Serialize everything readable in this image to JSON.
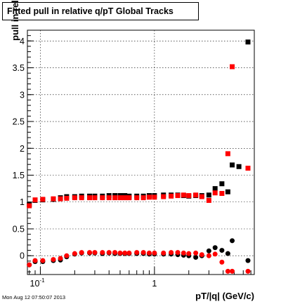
{
  "title": "Fitted pull in relative q/pT  Global Tracks",
  "timestamp": "Mon Aug 12 07:50:07 2013",
  "chart_data": {
    "type": "scatter",
    "xlabel": "pT/|q| (GeV/c)",
    "ylabel": "pull in relative q/pT",
    "xscale": "log",
    "xlim": [
      0.077,
      7.5
    ],
    "ylim": [
      -0.35,
      4.2
    ],
    "grid": true,
    "x_tick_labels": [
      "10",
      "-1",
      "1"
    ],
    "y_ticks": [
      0,
      0.5,
      1,
      1.5,
      2,
      2.5,
      3,
      3.5,
      4
    ],
    "colors": {
      "black_series": "#000000",
      "red_series": "#ff0000"
    },
    "series": [
      {
        "marker": "square",
        "color": "#000000",
        "points": [
          [
            0.08,
            0.95
          ],
          [
            0.09,
            1.03
          ],
          [
            0.105,
            1.04
          ],
          [
            0.13,
            1.05
          ],
          [
            0.15,
            1.08
          ],
          [
            0.17,
            1.1
          ],
          [
            0.2,
            1.1
          ],
          [
            0.23,
            1.11
          ],
          [
            0.27,
            1.11
          ],
          [
            0.3,
            1.11
          ],
          [
            0.35,
            1.11
          ],
          [
            0.4,
            1.12
          ],
          [
            0.45,
            1.12
          ],
          [
            0.5,
            1.12
          ],
          [
            0.55,
            1.12
          ],
          [
            0.6,
            1.11
          ],
          [
            0.7,
            1.11
          ],
          [
            0.8,
            1.11
          ],
          [
            0.9,
            1.12
          ],
          [
            1.0,
            1.12
          ],
          [
            1.2,
            1.13
          ],
          [
            1.4,
            1.13
          ],
          [
            1.6,
            1.13
          ],
          [
            1.8,
            1.12
          ],
          [
            2.0,
            1.11
          ],
          [
            2.3,
            1.12
          ],
          [
            2.6,
            1.12
          ],
          [
            3.0,
            1.13
          ],
          [
            3.4,
            1.25
          ],
          [
            3.9,
            1.34
          ],
          [
            4.4,
            1.19
          ],
          [
            4.8,
            1.69
          ],
          [
            5.5,
            1.66
          ],
          [
            6.6,
            3.98
          ]
        ]
      },
      {
        "marker": "circle",
        "color": "#000000",
        "points": [
          [
            0.08,
            -0.17
          ],
          [
            0.09,
            -0.11
          ],
          [
            0.105,
            -0.11
          ],
          [
            0.13,
            -0.09
          ],
          [
            0.15,
            -0.08
          ],
          [
            0.17,
            -0.02
          ],
          [
            0.2,
            0.03
          ],
          [
            0.23,
            0.05
          ],
          [
            0.27,
            0.05
          ],
          [
            0.3,
            0.05
          ],
          [
            0.35,
            0.04
          ],
          [
            0.4,
            0.05
          ],
          [
            0.45,
            0.04
          ],
          [
            0.5,
            0.04
          ],
          [
            0.55,
            0.04
          ],
          [
            0.6,
            0.04
          ],
          [
            0.7,
            0.04
          ],
          [
            0.8,
            0.04
          ],
          [
            0.9,
            0.03
          ],
          [
            1.0,
            0.03
          ],
          [
            1.2,
            0.03
          ],
          [
            1.4,
            0.03
          ],
          [
            1.6,
            0.02
          ],
          [
            1.8,
            0.01
          ],
          [
            2.0,
            0.0
          ],
          [
            2.3,
            -0.03
          ],
          [
            2.6,
            0.0
          ],
          [
            3.0,
            0.09
          ],
          [
            3.4,
            0.15
          ],
          [
            3.9,
            0.1
          ],
          [
            4.4,
            0.04
          ],
          [
            4.8,
            0.28
          ],
          [
            6.6,
            -0.09
          ]
        ]
      },
      {
        "marker": "square",
        "color": "#ff0000",
        "points": [
          [
            0.08,
            0.93
          ],
          [
            0.09,
            1.04
          ],
          [
            0.105,
            1.05
          ],
          [
            0.13,
            1.06
          ],
          [
            0.15,
            1.06
          ],
          [
            0.17,
            1.07
          ],
          [
            0.2,
            1.08
          ],
          [
            0.23,
            1.08
          ],
          [
            0.27,
            1.08
          ],
          [
            0.3,
            1.08
          ],
          [
            0.35,
            1.08
          ],
          [
            0.4,
            1.08
          ],
          [
            0.45,
            1.08
          ],
          [
            0.5,
            1.08
          ],
          [
            0.55,
            1.08
          ],
          [
            0.6,
            1.08
          ],
          [
            0.7,
            1.08
          ],
          [
            0.8,
            1.08
          ],
          [
            0.9,
            1.09
          ],
          [
            1.0,
            1.09
          ],
          [
            1.2,
            1.1
          ],
          [
            1.4,
            1.11
          ],
          [
            1.6,
            1.12
          ],
          [
            1.8,
            1.13
          ],
          [
            2.0,
            1.12
          ],
          [
            2.3,
            1.13
          ],
          [
            2.6,
            1.1
          ],
          [
            3.0,
            1.03
          ],
          [
            3.4,
            1.17
          ],
          [
            3.9,
            1.16
          ],
          [
            4.4,
            1.9
          ],
          [
            4.8,
            3.52
          ],
          [
            6.6,
            1.63
          ]
        ]
      },
      {
        "marker": "circle",
        "color": "#ff0000",
        "points": [
          [
            0.08,
            -0.17
          ],
          [
            0.09,
            -0.09
          ],
          [
            0.105,
            -0.09
          ],
          [
            0.13,
            -0.07
          ],
          [
            0.15,
            -0.05
          ],
          [
            0.17,
            0.0
          ],
          [
            0.2,
            0.04
          ],
          [
            0.23,
            0.06
          ],
          [
            0.27,
            0.06
          ],
          [
            0.3,
            0.06
          ],
          [
            0.35,
            0.06
          ],
          [
            0.4,
            0.06
          ],
          [
            0.45,
            0.06
          ],
          [
            0.5,
            0.05
          ],
          [
            0.55,
            0.05
          ],
          [
            0.6,
            0.05
          ],
          [
            0.7,
            0.06
          ],
          [
            0.8,
            0.06
          ],
          [
            0.9,
            0.05
          ],
          [
            1.0,
            0.05
          ],
          [
            1.2,
            0.05
          ],
          [
            1.4,
            0.06
          ],
          [
            1.6,
            0.06
          ],
          [
            1.8,
            0.05
          ],
          [
            2.0,
            0.04
          ],
          [
            2.3,
            0.05
          ],
          [
            2.6,
            0.02
          ],
          [
            3.0,
            0.0
          ],
          [
            3.4,
            0.03
          ],
          [
            3.9,
            -0.12
          ],
          [
            4.4,
            -0.29
          ],
          [
            4.8,
            -0.29
          ],
          [
            6.6,
            -0.29
          ]
        ]
      }
    ]
  }
}
